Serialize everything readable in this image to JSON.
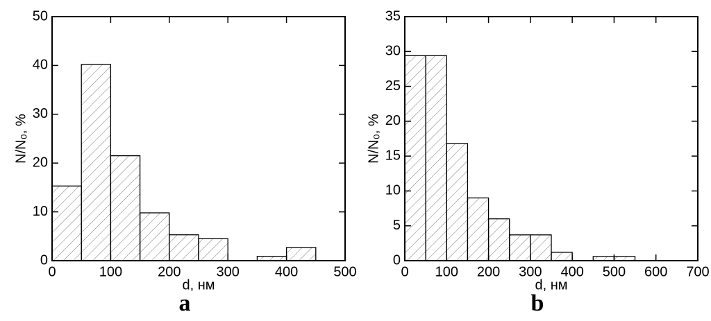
{
  "chart_data": [
    {
      "type": "histogram",
      "label": "a",
      "xlabel": "d, нм",
      "ylabel": "N/N₀, %",
      "bins": [
        0,
        50,
        100,
        150,
        200,
        250,
        300,
        350,
        400,
        450
      ],
      "values": [
        15.3,
        40.2,
        21.5,
        9.8,
        5.3,
        4.5,
        0,
        0.9,
        2.7
      ],
      "xlim": [
        0,
        500
      ],
      "ylim": [
        0,
        50
      ],
      "xticks": [
        0,
        100,
        200,
        300,
        400,
        500
      ],
      "yticks": [
        0,
        10,
        20,
        30,
        40,
        50
      ]
    },
    {
      "type": "histogram",
      "label": "b",
      "xlabel": "d, нм",
      "ylabel": "N/N₀, %",
      "bins": [
        0,
        50,
        100,
        150,
        200,
        250,
        300,
        350,
        400,
        450,
        500,
        550
      ],
      "values": [
        29.4,
        29.4,
        16.8,
        9.0,
        6.0,
        3.7,
        3.7,
        1.2,
        0,
        0.6,
        0.6
      ],
      "xlim": [
        0,
        700
      ],
      "ylim": [
        0,
        35
      ],
      "xticks": [
        0,
        100,
        200,
        300,
        400,
        500,
        600,
        700
      ],
      "yticks": [
        0,
        5,
        10,
        15,
        20,
        25,
        30,
        35
      ]
    }
  ]
}
